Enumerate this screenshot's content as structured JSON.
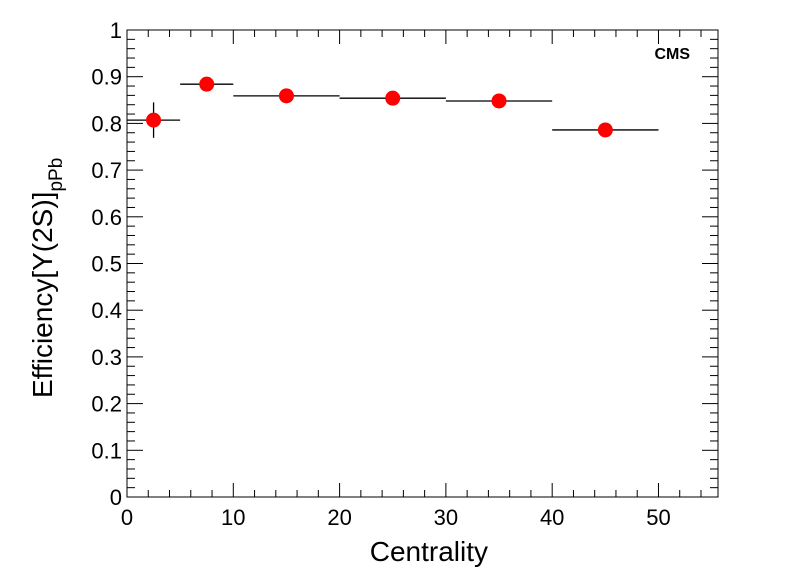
{
  "chart_data": {
    "type": "scatter",
    "title": "",
    "xlabel": "Centrality",
    "ylabel": "Efficiency[Υ(2S)]",
    "ylabel_subscript": "pPb",
    "annotation": "CMS",
    "xlim": [
      0,
      55.6
    ],
    "ylim": [
      0,
      1
    ],
    "x_ticks": [
      "0",
      "10",
      "20",
      "30",
      "40",
      "50"
    ],
    "y_ticks": [
      "0",
      "0.1",
      "0.2",
      "0.3",
      "0.4",
      "0.5",
      "0.6",
      "0.7",
      "0.8",
      "0.9",
      "1"
    ],
    "grid": false,
    "marker_color": "#ff0000",
    "points": [
      {
        "x": 2.5,
        "y": 0.807,
        "xlow": 0,
        "xhigh": 5,
        "yerr": 0.038
      },
      {
        "x": 7.5,
        "y": 0.884,
        "xlow": 5,
        "xhigh": 10,
        "yerr": 0.003
      },
      {
        "x": 15,
        "y": 0.859,
        "xlow": 10,
        "xhigh": 20,
        "yerr": 0.003
      },
      {
        "x": 25,
        "y": 0.854,
        "xlow": 20,
        "xhigh": 30,
        "yerr": 0.003
      },
      {
        "x": 35,
        "y": 0.848,
        "xlow": 30,
        "xhigh": 40,
        "yerr": 0.003
      },
      {
        "x": 45,
        "y": 0.786,
        "xlow": 40,
        "xhigh": 50,
        "yerr": 0.002
      }
    ]
  }
}
